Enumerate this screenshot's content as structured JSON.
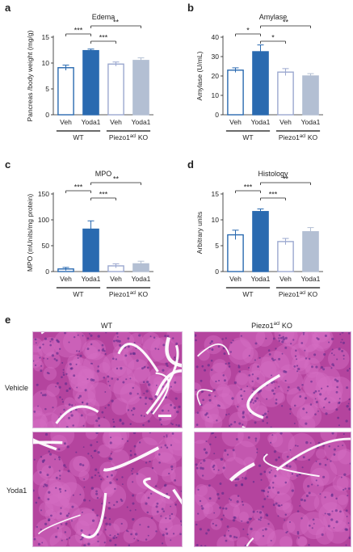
{
  "panel_letters": [
    "a",
    "b",
    "c",
    "d",
    "e"
  ],
  "chart_data": [
    {
      "type": "bar",
      "panel": "a",
      "title": "Edema",
      "ylabel": "Pancreas /body weight (mg/g)",
      "ylim": [
        0,
        15
      ],
      "yticks": [
        0,
        5,
        10,
        15
      ],
      "categories": [
        "Veh",
        "Yoda1",
        "Veh",
        "Yoda1"
      ],
      "values": [
        9.1,
        12.4,
        9.8,
        10.5
      ],
      "errors": [
        0.5,
        0.3,
        0.4,
        0.5
      ],
      "groups": [
        "WT",
        "Piezo1",
        "acl",
        " KO"
      ],
      "significance": [
        {
          "from": 0,
          "to": 1,
          "label": "***"
        },
        {
          "from": 1,
          "to": 2,
          "label": "***"
        },
        {
          "from": 1,
          "to": 3,
          "label": "**"
        }
      ]
    },
    {
      "type": "bar",
      "panel": "b",
      "title": "Amylase",
      "ylabel": "Amylase (U/mL)",
      "ylim": [
        0,
        40
      ],
      "yticks": [
        0,
        10,
        20,
        30,
        40
      ],
      "categories": [
        "Veh",
        "Yoda1",
        "Veh",
        "Yoda1"
      ],
      "values": [
        23,
        32.5,
        22,
        20
      ],
      "errors": [
        1.2,
        3.5,
        1.8,
        1.2
      ],
      "groups": [
        "WT",
        "Piezo1",
        "acl",
        " KO"
      ],
      "significance": [
        {
          "from": 0,
          "to": 1,
          "label": "*"
        },
        {
          "from": 1,
          "to": 2,
          "label": "*"
        },
        {
          "from": 1,
          "to": 3,
          "label": "**"
        }
      ]
    },
    {
      "type": "bar",
      "panel": "c",
      "title": "MPO",
      "ylabel": "MPO (mUnits/mg protein)",
      "ylim": [
        0,
        150
      ],
      "yticks": [
        0,
        50,
        100,
        150
      ],
      "categories": [
        "Veh",
        "Yoda1",
        "Veh",
        "Yoda1"
      ],
      "values": [
        5,
        82,
        11,
        15
      ],
      "errors": [
        3,
        16,
        4,
        5
      ],
      "groups": [
        "WT",
        "Piezo1",
        "acl",
        " KO"
      ],
      "significance": [
        {
          "from": 0,
          "to": 1,
          "label": "***"
        },
        {
          "from": 1,
          "to": 2,
          "label": "***"
        },
        {
          "from": 1,
          "to": 3,
          "label": "**"
        }
      ]
    },
    {
      "type": "bar",
      "panel": "d",
      "title": "Histology",
      "ylabel": "Arbitrary units",
      "ylim": [
        0,
        15
      ],
      "yticks": [
        0,
        5,
        10,
        15
      ],
      "categories": [
        "Veh",
        "Yoda1",
        "Veh",
        "Yoda1"
      ],
      "values": [
        7.1,
        11.6,
        5.8,
        7.7
      ],
      "errors": [
        0.9,
        0.5,
        0.6,
        0.8
      ],
      "groups": [
        "WT",
        "Piezo1",
        "acl",
        " KO"
      ],
      "significance": [
        {
          "from": 0,
          "to": 1,
          "label": "***"
        },
        {
          "from": 1,
          "to": 2,
          "label": "***"
        },
        {
          "from": 1,
          "to": 3,
          "label": "**"
        }
      ]
    }
  ],
  "micrographs": {
    "columns": [
      "WT",
      "Piezo1",
      "acl",
      " KO"
    ],
    "rows": [
      "Vehicle",
      "Yoda1"
    ]
  },
  "colors": {
    "veh_wt": "#2a6ab0",
    "yoda_wt": "#2a6ab0",
    "veh_ko": "#9ba8cf",
    "yoda_ko": "#b3bfd3",
    "tissue": "#b4449e",
    "tissue_light": "#d56fc4"
  }
}
